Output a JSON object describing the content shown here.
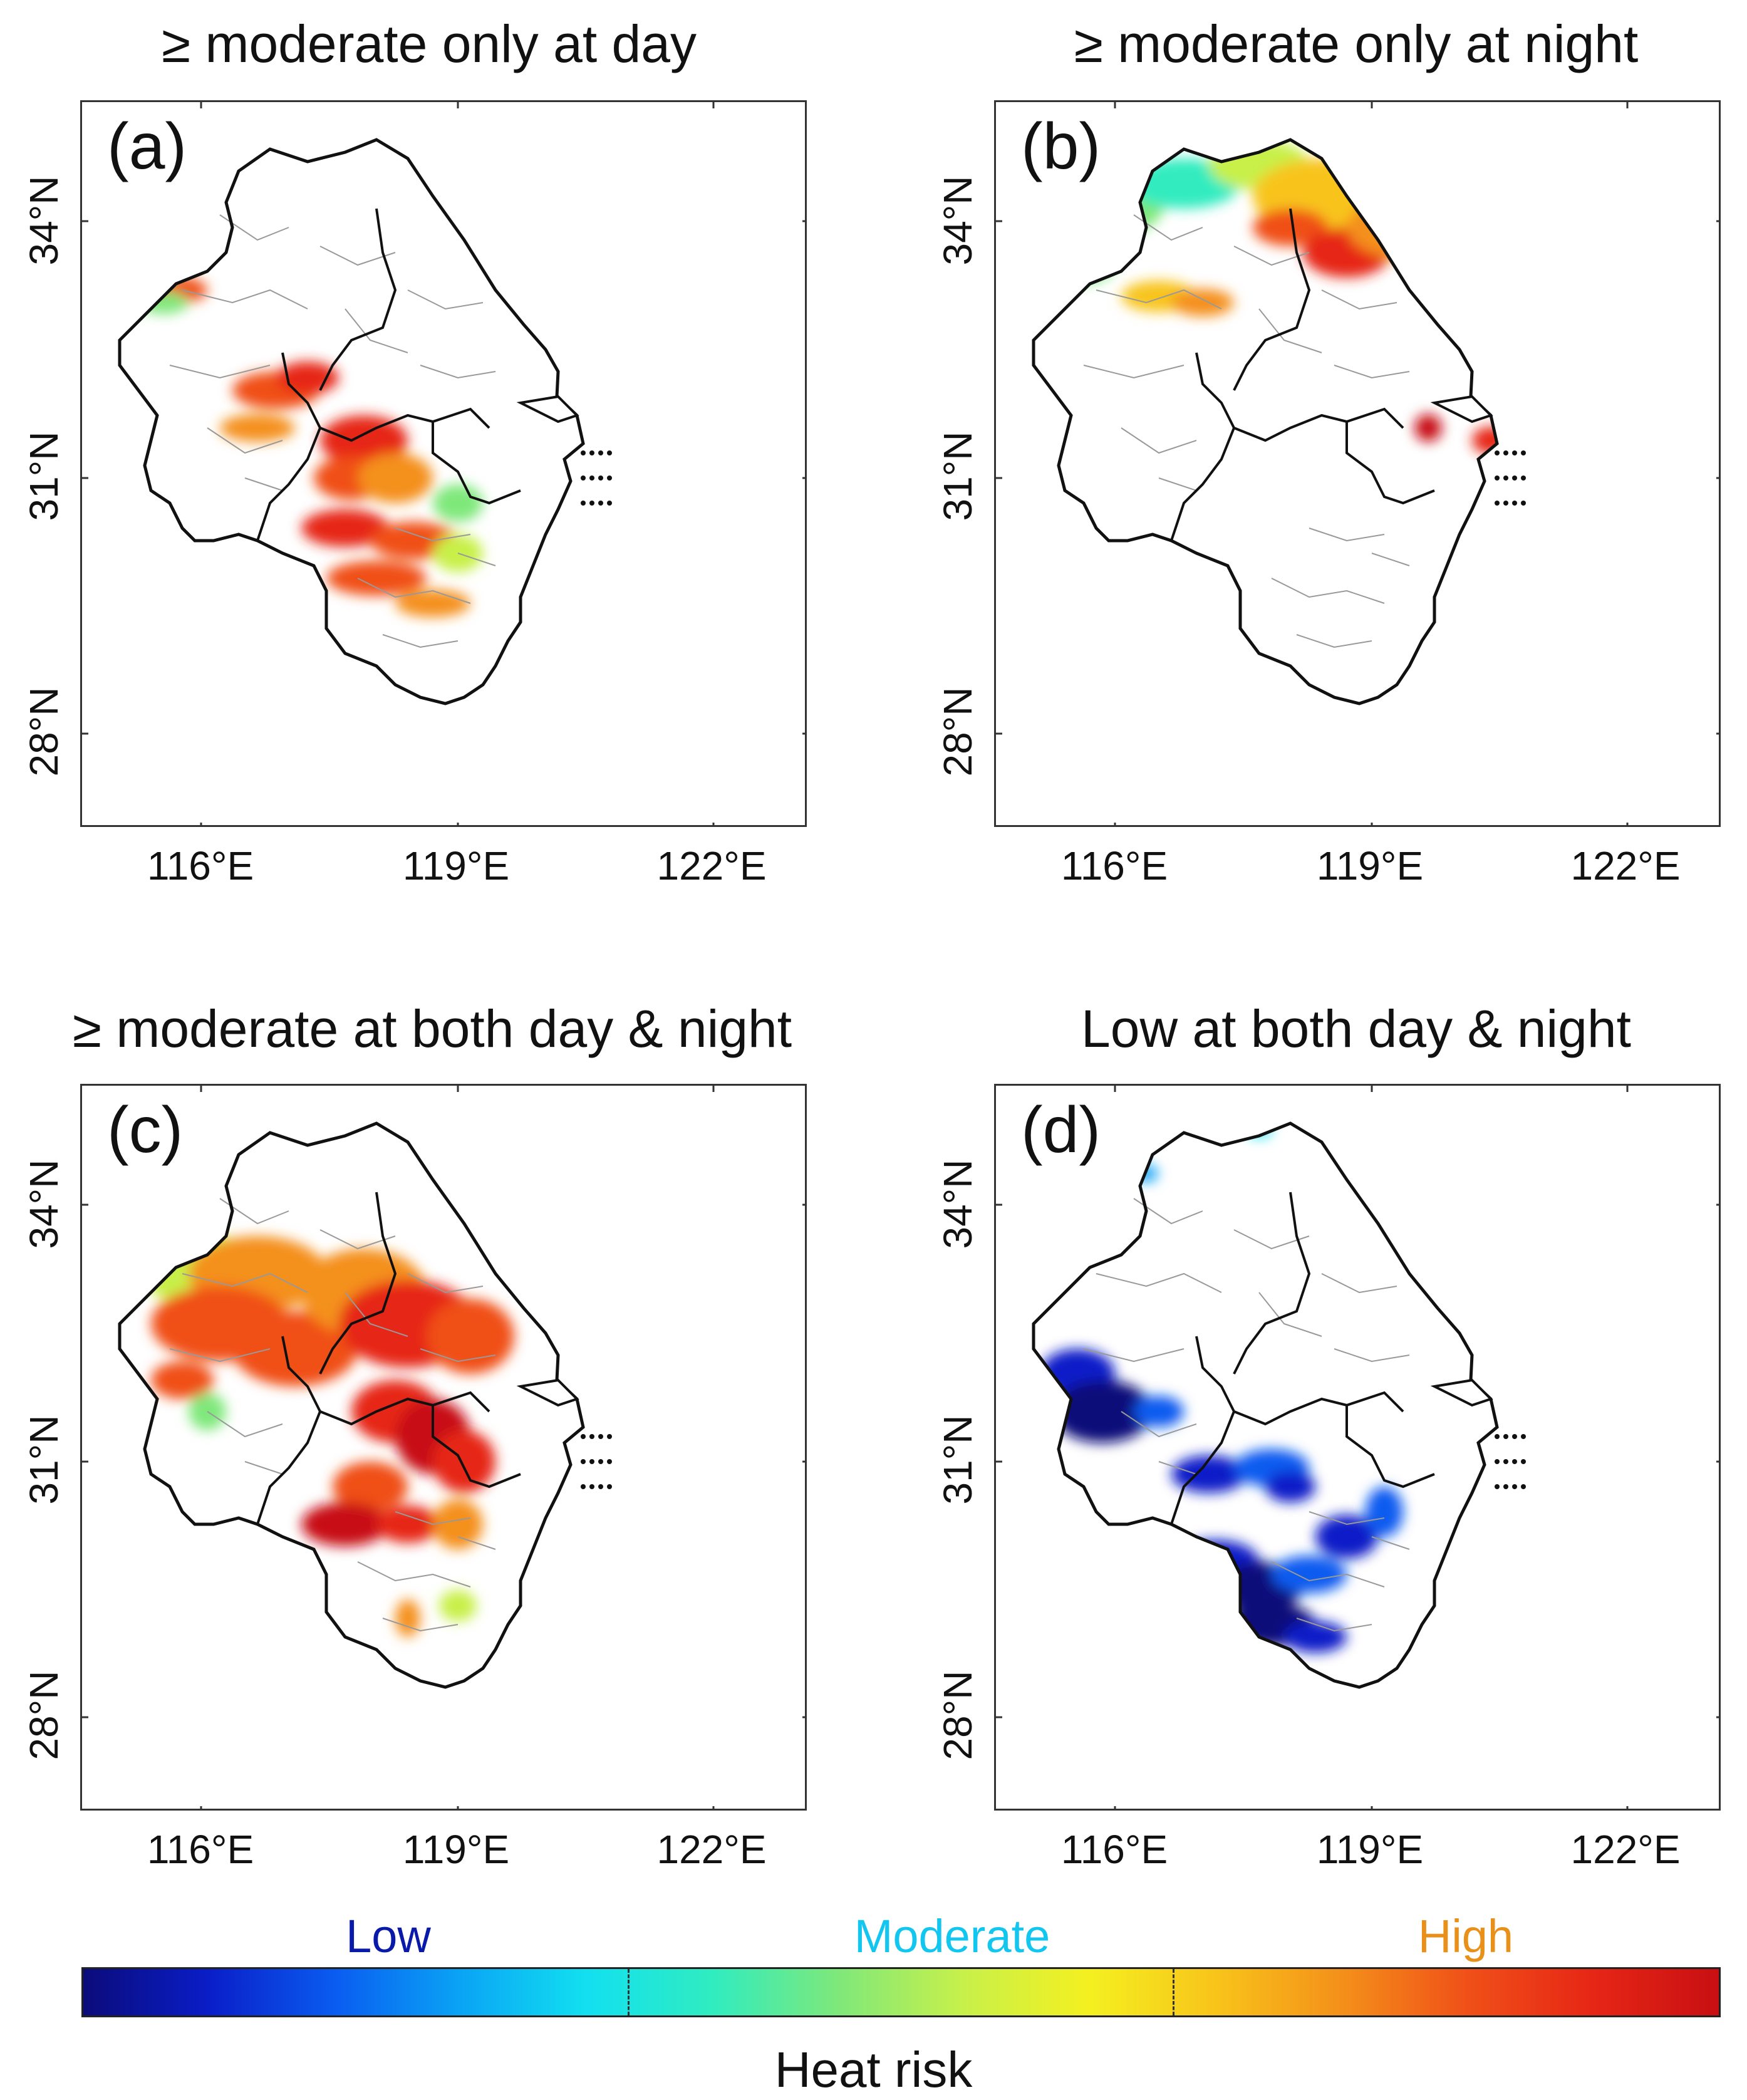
{
  "figure": {
    "panels": [
      {
        "id": "a",
        "label": "(a)",
        "title": "≥ moderate only at day"
      },
      {
        "id": "b",
        "label": "(b)",
        "title": "≥ moderate only at night"
      },
      {
        "id": "c",
        "label": "(c)",
        "title": "≥ moderate at both day & night"
      },
      {
        "id": "d",
        "label": "(d)",
        "title": "Low at both day & night"
      }
    ],
    "lon_ticks": [
      "116°E",
      "119°E",
      "122°E"
    ],
    "lat_ticks": [
      "34°N",
      "31°N",
      "28°N"
    ],
    "legend": {
      "title": "Heat risk",
      "categories": [
        {
          "label": "Low",
          "color": "#0a1aa8"
        },
        {
          "label": "Moderate",
          "color": "#12c6f0"
        },
        {
          "label": "High",
          "color": "#e8901a"
        }
      ],
      "gradient": [
        "#0b0b7a",
        "#0a1ec8",
        "#0a5cf0",
        "#0aa4f5",
        "#12e0f0",
        "#30ecc0",
        "#7fe87a",
        "#c8f04a",
        "#f4f020",
        "#f8c41a",
        "#f4901a",
        "#f05018",
        "#e62616",
        "#c80f12"
      ]
    }
  }
}
